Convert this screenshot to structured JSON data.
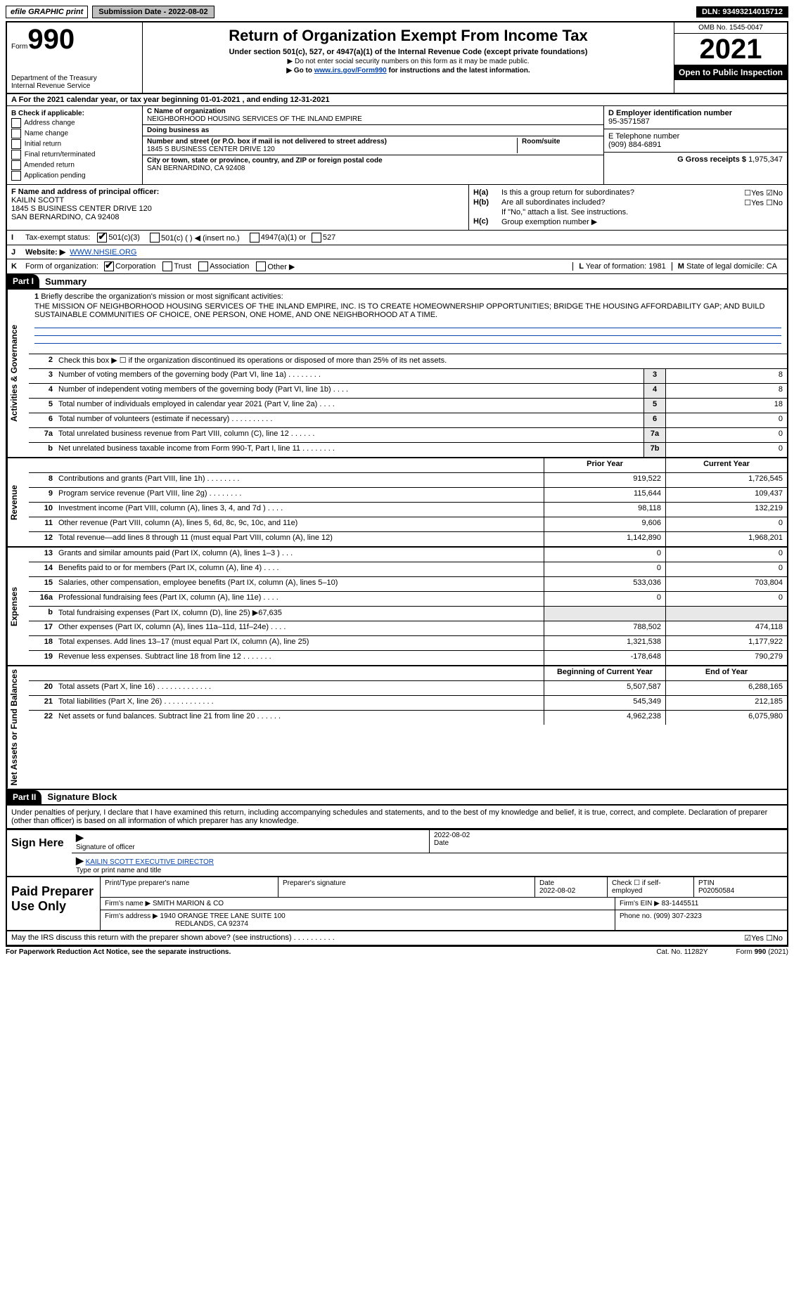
{
  "topbar": {
    "efile": "efile GRAPHIC print",
    "submission": "Submission Date - 2022-08-02",
    "dln": "DLN: 93493214015712"
  },
  "header": {
    "form_prefix": "Form",
    "form_number": "990",
    "title": "Return of Organization Exempt From Income Tax",
    "subtitle": "Under section 501(c), 527, or 4947(a)(1) of the Internal Revenue Code (except private foundations)",
    "note1": "▶ Do not enter social security numbers on this form as it may be made public.",
    "note2_pre": "▶ Go to ",
    "note2_link": "www.irs.gov/Form990",
    "note2_post": " for instructions and the latest information.",
    "dept_top": "Department of the Treasury",
    "dept_bot": "Internal Revenue Service",
    "omb": "OMB No. 1545-0047",
    "year": "2021",
    "open": "Open to Public Inspection"
  },
  "row_a": "A For the 2021 calendar year, or tax year beginning 01-01-2021    , and ending 12-31-2021",
  "box_b": {
    "title": "B Check if applicable:",
    "items": [
      "Address change",
      "Name change",
      "Initial return",
      "Final return/terminated",
      "Amended return",
      "Application pending"
    ]
  },
  "box_c": {
    "name_label": "C Name of organization",
    "name": "NEIGHBORHOOD HOUSING SERVICES OF THE INLAND EMPIRE",
    "dba_label": "Doing business as",
    "dba": "",
    "street_label": "Number and street (or P.O. box if mail is not delivered to street address)",
    "room_label": "Room/suite",
    "street": "1845 S BUSINESS CENTER DRIVE 120",
    "city_label": "City or town, state or province, country, and ZIP or foreign postal code",
    "city": "SAN BERNARDINO, CA  92408"
  },
  "box_d": {
    "label": "D Employer identification number",
    "val": "95-3571587"
  },
  "box_e": {
    "label": "E Telephone number",
    "val": "(909) 884-6891"
  },
  "box_g": {
    "label": "G Gross receipts $",
    "val": "1,975,347"
  },
  "box_f": {
    "label": "F Name and address of principal officer:",
    "name": "KAILIN SCOTT",
    "addr1": "1845 S BUSINESS CENTER DRIVE 120",
    "addr2": "SAN BERNARDINO, CA  92408"
  },
  "box_h": {
    "ha_label": "H(a)",
    "ha_text": "Is this a group return for subordinates?",
    "ha_ans": "☐Yes ☑No",
    "hb_label": "H(b)",
    "hb_text": "Are all subordinates included?",
    "hb_ans": "☐Yes ☐No",
    "hb_note": "If \"No,\" attach a list. See instructions.",
    "hc_label": "H(c)",
    "hc_text": "Group exemption number ▶"
  },
  "row_i": {
    "label": "I",
    "text": "Tax-exempt status:",
    "opt1": "501(c)(3)",
    "opt2": "501(c) (  ) ◀ (insert no.)",
    "opt3": "4947(a)(1) or",
    "opt4": "527"
  },
  "row_j": {
    "label": "J",
    "text": "Website: ▶",
    "val": "WWW.NHSIE.ORG"
  },
  "row_k": {
    "label": "K",
    "text": "Form of organization:",
    "o1": "Corporation",
    "o2": "Trust",
    "o3": "Association",
    "o4": "Other ▶"
  },
  "row_lm": {
    "l_label": "L",
    "l_text": "Year of formation: 1981",
    "m_label": "M",
    "m_text": "State of legal domicile: CA"
  },
  "part1": {
    "num": "Part I",
    "title": "Summary"
  },
  "mission": {
    "num": "1",
    "label": "Briefly describe the organization's mission or most significant activities:",
    "text": "THE MISSION OF NEIGHBORHOOD HOUSING SERVICES OF THE INLAND EMPIRE, INC. IS TO CREATE HOMEOWNERSHIP OPPORTUNITIES; BRIDGE THE HOUSING AFFORDABILITY GAP; AND BUILD SUSTAINABLE COMMUNITIES OF CHOICE, ONE PERSON, ONE HOME, AND ONE NEIGHBORHOOD AT A TIME."
  },
  "gov_lines": [
    {
      "n": "2",
      "t": "Check this box ▶ ☐ if the organization discontinued its operations or disposed of more than 25% of its net assets.",
      "box": "",
      "v": ""
    },
    {
      "n": "3",
      "t": "Number of voting members of the governing body (Part VI, line 1a)   .    .    .    .    .    .    .    .",
      "box": "3",
      "v": "8"
    },
    {
      "n": "4",
      "t": "Number of independent voting members of the governing body (Part VI, line 1b)   .    .    .    .",
      "box": "4",
      "v": "8"
    },
    {
      "n": "5",
      "t": "Total number of individuals employed in calendar year 2021 (Part V, line 2a)    .    .    .    .",
      "box": "5",
      "v": "18"
    },
    {
      "n": "6",
      "t": "Total number of volunteers (estimate if necessary)    .    .    .    .    .    .    .    .    .    .",
      "box": "6",
      "v": "0"
    },
    {
      "n": "7a",
      "t": "Total unrelated business revenue from Part VIII, column (C), line 12    .    .    .    .    .    .",
      "box": "7a",
      "v": "0"
    },
    {
      "n": "b",
      "t": "Net unrelated business taxable income from Form 990-T, Part I, line 11    .    .    .    .    .    .    .    .",
      "box": "7b",
      "v": "0"
    }
  ],
  "rev_header": {
    "prior": "Prior Year",
    "curr": "Current Year"
  },
  "rev_lines": [
    {
      "n": "8",
      "t": "Contributions and grants (Part VIII, line 1h)   .    .    .    .    .    .    .    .",
      "p": "919,522",
      "c": "1,726,545"
    },
    {
      "n": "9",
      "t": "Program service revenue (Part VIII, line 2g)   .    .    .    .    .    .    .    .",
      "p": "115,644",
      "c": "109,437"
    },
    {
      "n": "10",
      "t": "Investment income (Part VIII, column (A), lines 3, 4, and 7d )   .    .    .    .",
      "p": "98,118",
      "c": "132,219"
    },
    {
      "n": "11",
      "t": "Other revenue (Part VIII, column (A), lines 5, 6d, 8c, 9c, 10c, and 11e)",
      "p": "9,606",
      "c": "0"
    },
    {
      "n": "12",
      "t": "Total revenue—add lines 8 through 11 (must equal Part VIII, column (A), line 12)",
      "p": "1,142,890",
      "c": "1,968,201"
    }
  ],
  "exp_lines": [
    {
      "n": "13",
      "t": "Grants and similar amounts paid (Part IX, column (A), lines 1–3 )   .    .    .",
      "p": "0",
      "c": "0"
    },
    {
      "n": "14",
      "t": "Benefits paid to or for members (Part IX, column (A), line 4)   .    .    .    .",
      "p": "0",
      "c": "0"
    },
    {
      "n": "15",
      "t": "Salaries, other compensation, employee benefits (Part IX, column (A), lines 5–10)",
      "p": "533,036",
      "c": "703,804"
    },
    {
      "n": "16a",
      "t": "Professional fundraising fees (Part IX, column (A), line 11e)   .    .    .    .",
      "p": "0",
      "c": "0"
    },
    {
      "n": "b",
      "t": "Total fundraising expenses (Part IX, column (D), line 25) ▶67,635",
      "p": "",
      "c": "",
      "shade": true
    },
    {
      "n": "17",
      "t": "Other expenses (Part IX, column (A), lines 11a–11d, 11f–24e)   .    .    .    .",
      "p": "788,502",
      "c": "474,118"
    },
    {
      "n": "18",
      "t": "Total expenses. Add lines 13–17 (must equal Part IX, column (A), line 25)",
      "p": "1,321,538",
      "c": "1,177,922"
    },
    {
      "n": "19",
      "t": "Revenue less expenses. Subtract line 18 from line 12   .    .    .    .    .    .    .",
      "p": "-178,648",
      "c": "790,279"
    }
  ],
  "na_header": {
    "prior": "Beginning of Current Year",
    "curr": "End of Year"
  },
  "na_lines": [
    {
      "n": "20",
      "t": "Total assets (Part X, line 16)   .    .    .    .    .    .    .    .    .    .    .    .    .",
      "p": "5,507,587",
      "c": "6,288,165"
    },
    {
      "n": "21",
      "t": "Total liabilities (Part X, line 26)   .    .    .    .    .    .    .    .    .    .    .    .",
      "p": "545,349",
      "c": "212,185"
    },
    {
      "n": "22",
      "t": "Net assets or fund balances. Subtract line 21 from line 20   .    .    .    .    .    .",
      "p": "4,962,238",
      "c": "6,075,980"
    }
  ],
  "part2": {
    "num": "Part II",
    "title": "Signature Block"
  },
  "sig_decl": "Under penalties of perjury, I declare that I have examined this return, including accompanying schedules and statements, and to the best of my knowledge and belief, it is true, correct, and complete. Declaration of preparer (other than officer) is based on all information of which preparer has any knowledge.",
  "sign": {
    "here": "Sign Here",
    "sig_label": "Signature of officer",
    "date": "2022-08-02",
    "date_label": "Date",
    "name": "KAILIN SCOTT  EXECUTIVE DIRECTOR",
    "name_label": "Type or print name and title"
  },
  "prep": {
    "title": "Paid Preparer Use Only",
    "h1": "Print/Type preparer's name",
    "h2": "Preparer's signature",
    "h3": "Date",
    "h4": "Check ☐ if self-employed",
    "h5": "PTIN",
    "v1": "",
    "v2": "",
    "v3": "2022-08-02",
    "v5": "P02050584",
    "firm_label": "Firm's name    ▶",
    "firm": "SMITH MARION & CO",
    "ein_label": "Firm's EIN ▶",
    "ein": "83-1445511",
    "addr_label": "Firm's address ▶",
    "addr1": "1940 ORANGE TREE LANE SUITE 100",
    "addr2": "REDLANDS, CA  92374",
    "phone_label": "Phone no.",
    "phone": "(909) 307-2323"
  },
  "discuss": {
    "text": "May the IRS discuss this return with the preparer shown above? (see instructions)   .    .    .    .    .    .    .    .    .    .",
    "ans": "☑Yes  ☐No"
  },
  "footer": {
    "left": "For Paperwork Reduction Act Notice, see the separate instructions.",
    "mid": "Cat. No. 11282Y",
    "right": "Form 990 (2021)"
  },
  "side_labels": {
    "gov": "Activities & Governance",
    "rev": "Revenue",
    "exp": "Expenses",
    "na": "Net Assets or Fund Balances"
  }
}
